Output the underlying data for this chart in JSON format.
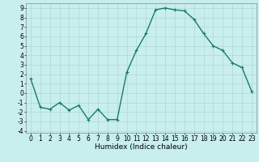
{
  "x": [
    0,
    1,
    2,
    3,
    4,
    5,
    6,
    7,
    8,
    9,
    10,
    11,
    12,
    13,
    14,
    15,
    16,
    17,
    18,
    19,
    20,
    21,
    22,
    23
  ],
  "y": [
    1.5,
    -1.5,
    -1.7,
    -1.0,
    -1.8,
    -1.3,
    -2.8,
    -1.7,
    -2.8,
    -2.8,
    2.2,
    4.5,
    6.3,
    8.8,
    9.0,
    8.8,
    8.7,
    7.8,
    6.3,
    5.0,
    4.5,
    3.2,
    2.7,
    0.2
  ],
  "color": "#1a7a6e",
  "bg_color": "#c8eeee",
  "grid_color": "#b0d8d8",
  "xlabel": "Humidex (Indice chaleur)",
  "ylim": [
    -4.2,
    9.5
  ],
  "xlim": [
    -0.5,
    23.5
  ],
  "yticks": [
    -4,
    -3,
    -2,
    -1,
    0,
    1,
    2,
    3,
    4,
    5,
    6,
    7,
    8,
    9
  ],
  "xticks": [
    0,
    1,
    2,
    3,
    4,
    5,
    6,
    7,
    8,
    9,
    10,
    11,
    12,
    13,
    14,
    15,
    16,
    17,
    18,
    19,
    20,
    21,
    22,
    23
  ],
  "marker": "+",
  "linewidth": 1.0,
  "markersize": 3.5,
  "markeredgewidth": 0.8,
  "xlabel_fontsize": 6.5,
  "tick_fontsize": 5.5
}
